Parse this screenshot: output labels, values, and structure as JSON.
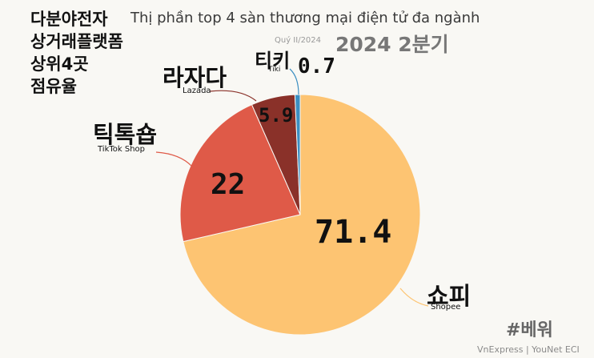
{
  "title_kr": "다분야전자\n상거래플랫폼\n상위4곳\n점유율",
  "subtitle": "Thị phần top 4 sàn thương mại điện tử đa ngành",
  "period_small": "Quý II/2024",
  "period_kr": "2024 2분기",
  "hashtag": "#베워",
  "source": "VnExpress | YouNet ECI",
  "chart_data": {
    "type": "pie",
    "title": "Thị phần top 4 sàn thương mại điện tử đa ngành",
    "subtitle": "Quý II/2024",
    "unit": "%",
    "slices": [
      {
        "label": "Shopee",
        "label_kr": "쇼피",
        "value": 71.4,
        "value_label": "71.4",
        "color": "#fdc472"
      },
      {
        "label": "TikTok Shop",
        "label_kr": "틱톡숍",
        "value": 22,
        "value_label": "22",
        "color": "#df5a48"
      },
      {
        "label": "Lazada",
        "label_kr": "라자다",
        "value": 5.9,
        "value_label": "5.9",
        "color": "#8a3129"
      },
      {
        "label": "Tiki",
        "label_kr": "티키",
        "value": 0.7,
        "value_label": "0.7",
        "color": "#3c8fc2"
      }
    ]
  }
}
